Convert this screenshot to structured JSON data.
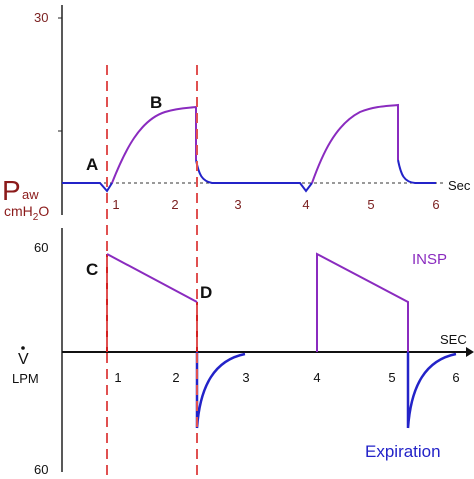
{
  "pressure": {
    "y_tick": "30",
    "x_ticks": [
      "1",
      "2",
      "3",
      "4",
      "5",
      "6"
    ],
    "x_unit": "Sec",
    "y_label": "P",
    "y_label_sub": "aw",
    "y_unit": "cmH",
    "y_unit_sub": "2",
    "y_unit_end": "O",
    "points": [
      "A",
      "B"
    ]
  },
  "flow": {
    "y_ticks": [
      "60",
      "60"
    ],
    "x_ticks": [
      "1",
      "2",
      "3",
      "4",
      "5",
      "6"
    ],
    "x_unit": "SEC",
    "y_label": "V",
    "y_unit": "LPM",
    "points": [
      "C",
      "D"
    ],
    "insp": "INSP",
    "exp": "Expiration"
  }
}
